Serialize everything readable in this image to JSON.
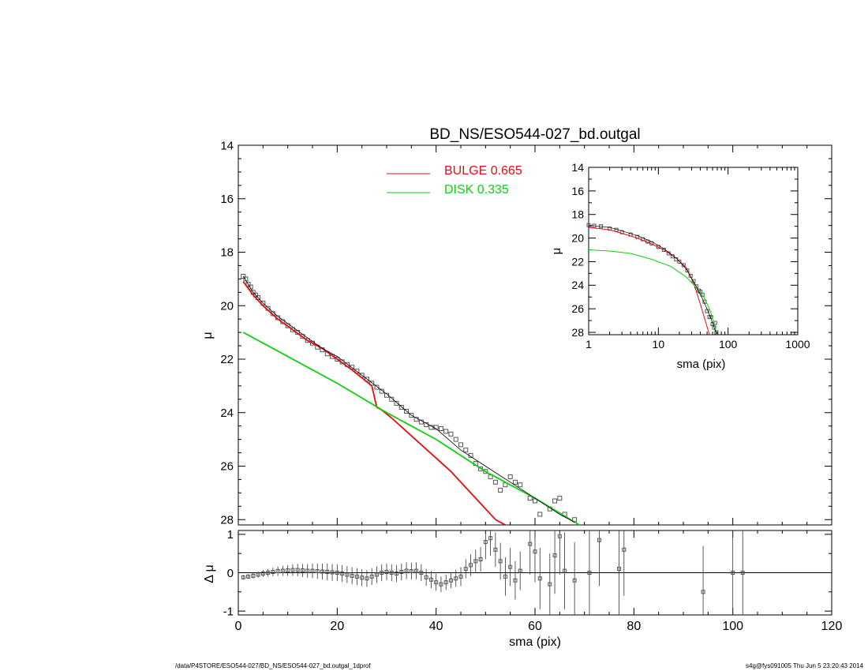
{
  "title": "BD_NS/ESO544-027_bd.outgal",
  "footer": {
    "left": "/data/P4STORE/ESO544-027/BD_NS/ESO544-027_bd.outgal_1dprof",
    "right": "s4g@fys091005  Thu Jun  5 23:20:43 2014"
  },
  "colors": {
    "bulge": "#e01010",
    "disk": "#10d010",
    "total": "#000000",
    "data": "#555555"
  },
  "chart_data": [
    {
      "type": "line",
      "name": "main-profile",
      "title": "BD_NS/ESO544-027_bd.outgal",
      "xlabel": "",
      "ylabel": "μ",
      "xlim": [
        0,
        120
      ],
      "ylim": [
        28.2,
        14
      ],
      "xticks": [
        0,
        20,
        40,
        60,
        80,
        100,
        120
      ],
      "yticks": [
        14,
        16,
        18,
        20,
        22,
        24,
        26,
        28
      ],
      "legend": [
        {
          "label": "BULGE  0.665",
          "color": "#e01010"
        },
        {
          "label": "DISK  0.335",
          "color": "#10d010"
        }
      ],
      "legend_placement": "top-center",
      "series": [
        {
          "key": "bulge",
          "x": [
            1,
            3,
            5,
            8,
            11,
            14,
            17,
            20,
            23,
            25,
            27,
            28,
            29,
            31,
            34,
            37,
            40,
            43,
            46,
            49,
            52,
            54
          ],
          "y": [
            19.1,
            19.6,
            20.0,
            20.5,
            20.9,
            21.3,
            21.6,
            22.0,
            22.4,
            22.7,
            23.0,
            23.8,
            23.9,
            24.2,
            24.7,
            25.2,
            25.7,
            26.2,
            26.8,
            27.4,
            28.0,
            28.2
          ]
        },
        {
          "key": "disk",
          "x": [
            1,
            10,
            20,
            30,
            40,
            50,
            60,
            69
          ],
          "y": [
            21.0,
            21.9,
            22.9,
            24.0,
            25.0,
            26.2,
            27.2,
            28.2
          ]
        },
        {
          "key": "total",
          "x": [
            1,
            3,
            5,
            8,
            11,
            14,
            17,
            20,
            25,
            30,
            35,
            40,
            45,
            50,
            55,
            60,
            65,
            68
          ],
          "y": [
            18.9,
            19.5,
            19.9,
            20.4,
            20.8,
            21.2,
            21.6,
            21.9,
            22.6,
            23.3,
            24.1,
            24.6,
            25.4,
            26.0,
            26.6,
            27.2,
            27.8,
            28.1
          ]
        }
      ],
      "points": {
        "x": [
          1,
          1.5,
          2,
          2.5,
          3,
          3.5,
          4,
          5,
          6,
          7,
          8,
          9,
          10,
          11,
          12,
          13,
          14,
          15,
          16,
          17,
          18,
          19,
          20,
          21,
          22,
          23,
          24,
          25,
          26,
          27,
          28,
          29,
          30,
          31,
          32,
          33,
          34,
          35,
          36,
          37,
          38,
          39,
          40,
          41,
          42,
          43,
          44,
          45,
          46,
          47,
          48,
          49,
          50,
          51,
          52,
          53,
          54,
          55,
          56,
          57,
          59,
          60,
          61,
          63,
          64,
          65,
          66,
          68
        ],
        "y": [
          18.9,
          19.0,
          19.2,
          19.3,
          19.5,
          19.6,
          19.7,
          19.9,
          20.1,
          20.3,
          20.45,
          20.6,
          20.75,
          20.9,
          21.0,
          21.15,
          21.3,
          21.4,
          21.55,
          21.65,
          21.8,
          21.9,
          22.0,
          22.1,
          22.2,
          22.3,
          22.45,
          22.6,
          22.75,
          22.9,
          23.05,
          23.2,
          23.35,
          23.5,
          23.65,
          23.8,
          23.95,
          24.1,
          24.25,
          24.35,
          24.45,
          24.55,
          24.55,
          24.6,
          24.7,
          24.8,
          25.0,
          25.2,
          25.4,
          25.6,
          25.9,
          26.1,
          26.2,
          26.4,
          26.6,
          26.9,
          26.7,
          26.4,
          26.6,
          26.7,
          27.2,
          27.3,
          27.8,
          27.6,
          27.3,
          27.2,
          27.8,
          28.0
        ]
      }
    },
    {
      "type": "line",
      "name": "inset-log-profile",
      "xlabel": "sma (pix)",
      "ylabel": "μ",
      "xscale": "log",
      "xlim": [
        1,
        1000
      ],
      "ylim": [
        28.2,
        14
      ],
      "xticks": [
        1,
        10,
        100,
        1000
      ],
      "yticks": [
        14,
        16,
        18,
        20,
        22,
        24,
        26,
        28
      ],
      "series": [
        {
          "key": "bulge",
          "x": [
            1,
            2,
            3,
            5,
            8,
            12,
            18,
            25,
            32,
            40,
            47,
            54
          ],
          "y": [
            19.1,
            19.3,
            19.6,
            20.0,
            20.5,
            21.0,
            21.7,
            22.5,
            23.8,
            25.6,
            27.0,
            28.2
          ]
        },
        {
          "key": "disk",
          "x": [
            1,
            2,
            4,
            8,
            15,
            25,
            35,
            45,
            55,
            65,
            69
          ],
          "y": [
            21.0,
            21.1,
            21.3,
            21.8,
            22.4,
            23.3,
            24.2,
            25.0,
            26.1,
            27.5,
            28.2
          ]
        },
        {
          "key": "total",
          "x": [
            1,
            2,
            3,
            5,
            8,
            12,
            18,
            25,
            35,
            45,
            55,
            65,
            68
          ],
          "y": [
            18.9,
            19.1,
            19.4,
            19.8,
            20.3,
            20.9,
            21.7,
            22.6,
            24.1,
            25.4,
            26.6,
            27.8,
            28.1
          ]
        }
      ],
      "points": {
        "x": [
          1,
          1.2,
          1.5,
          2,
          2.5,
          3,
          4,
          5,
          6,
          7,
          8,
          10,
          12,
          14,
          16,
          18,
          20,
          23,
          26,
          29,
          32,
          35,
          38,
          40,
          43,
          46,
          50,
          54,
          57,
          60,
          63,
          65,
          68
        ],
        "y": [
          18.9,
          18.95,
          19.0,
          19.2,
          19.3,
          19.5,
          19.7,
          19.9,
          20.1,
          20.3,
          20.45,
          20.75,
          21.0,
          21.3,
          21.55,
          21.8,
          22.0,
          22.3,
          22.75,
          23.2,
          23.65,
          24.1,
          24.45,
          24.55,
          24.8,
          25.4,
          26.2,
          26.7,
          26.7,
          27.3,
          27.6,
          27.2,
          28.0
        ]
      }
    },
    {
      "type": "scatter",
      "name": "residuals",
      "xlabel": "sma (pix)",
      "ylabel": "Δ μ",
      "xlim": [
        0,
        120
      ],
      "ylim": [
        -1.1,
        1.1
      ],
      "xticks": [
        0,
        20,
        40,
        60,
        80,
        100,
        120
      ],
      "yticks": [
        -1,
        0,
        1
      ],
      "points": {
        "x": [
          1,
          2,
          3,
          4,
          5,
          6,
          7,
          8,
          9,
          10,
          11,
          12,
          13,
          14,
          15,
          16,
          17,
          18,
          19,
          20,
          21,
          22,
          23,
          24,
          25,
          26,
          27,
          28,
          29,
          30,
          31,
          32,
          33,
          34,
          35,
          36,
          37,
          38,
          39,
          40,
          41,
          42,
          43,
          44,
          45,
          46,
          47,
          48,
          49,
          50,
          51,
          52,
          53,
          54,
          55,
          56,
          57,
          59,
          60,
          61,
          63,
          64,
          65,
          66,
          68,
          71,
          73,
          77,
          78,
          94,
          100,
          102
        ],
        "y": [
          -0.12,
          -0.1,
          -0.08,
          -0.05,
          -0.02,
          0.0,
          0.02,
          0.04,
          0.05,
          0.06,
          0.07,
          0.07,
          0.06,
          0.05,
          0.05,
          0.04,
          0.03,
          0.02,
          0.01,
          0.0,
          -0.02,
          -0.05,
          -0.08,
          -0.1,
          -0.13,
          -0.15,
          -0.1,
          -0.05,
          0.0,
          0.02,
          0.0,
          -0.02,
          0.02,
          0.05,
          0.04,
          0.05,
          0.0,
          -0.12,
          -0.18,
          -0.25,
          -0.3,
          -0.25,
          -0.2,
          -0.15,
          -0.1,
          0.1,
          0.2,
          0.3,
          0.35,
          0.8,
          0.9,
          0.6,
          0.3,
          -0.1,
          0.15,
          -0.2,
          0.05,
          0.75,
          0.55,
          -0.15,
          -0.3,
          0.45,
          0.95,
          0.05,
          -0.2,
          0.0,
          0.85,
          0.1,
          0.6,
          -0.5,
          0.0,
          0.0
        ],
        "err": [
          0.06,
          0.06,
          0.07,
          0.08,
          0.09,
          0.1,
          0.11,
          0.12,
          0.13,
          0.14,
          0.15,
          0.16,
          0.17,
          0.18,
          0.19,
          0.2,
          0.21,
          0.22,
          0.22,
          0.22,
          0.22,
          0.22,
          0.22,
          0.22,
          0.22,
          0.22,
          0.22,
          0.22,
          0.22,
          0.22,
          0.22,
          0.22,
          0.22,
          0.22,
          0.22,
          0.22,
          0.22,
          0.22,
          0.22,
          0.22,
          0.2,
          0.2,
          0.2,
          0.22,
          0.25,
          0.25,
          0.28,
          0.3,
          0.32,
          0.45,
          0.45,
          0.45,
          0.48,
          0.5,
          0.5,
          0.5,
          0.5,
          0.8,
          0.8,
          0.8,
          0.8,
          1.0,
          1.0,
          1.0,
          1.0,
          1.2,
          1.2,
          1.2,
          1.2,
          1.2,
          1.2,
          1.2
        ]
      }
    }
  ]
}
